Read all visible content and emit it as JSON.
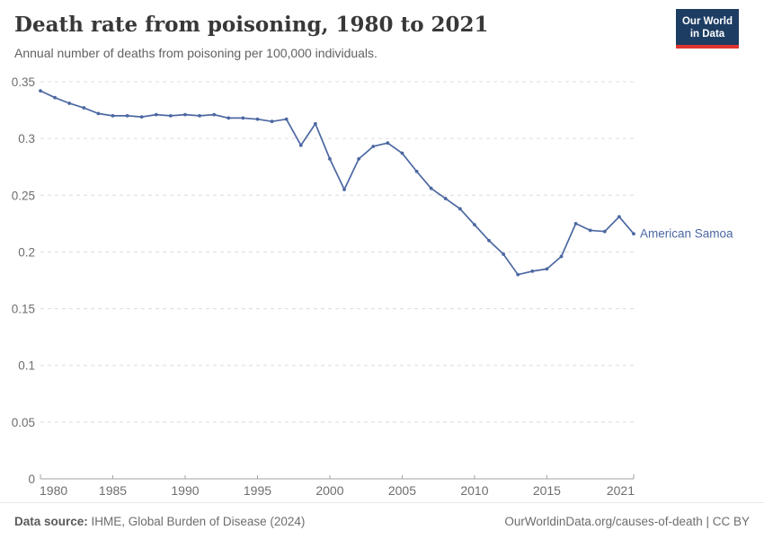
{
  "header": {
    "title": "Death rate from poisoning, 1980 to 2021",
    "subtitle": "Annual number of deaths from poisoning per 100,000 individuals.",
    "logo": {
      "line1": "Our World",
      "line2": "in Data"
    }
  },
  "chart_data": {
    "type": "line",
    "title": "Death rate from poisoning, 1980 to 2021",
    "x": [
      1980,
      1981,
      1982,
      1983,
      1984,
      1985,
      1986,
      1987,
      1988,
      1989,
      1990,
      1991,
      1992,
      1993,
      1994,
      1995,
      1996,
      1997,
      1998,
      1999,
      2000,
      2001,
      2002,
      2003,
      2004,
      2005,
      2006,
      2007,
      2008,
      2009,
      2010,
      2011,
      2012,
      2013,
      2014,
      2015,
      2016,
      2017,
      2018,
      2019,
      2020,
      2021
    ],
    "series": [
      {
        "name": "American Samoa",
        "values": [
          0.342,
          0.336,
          0.331,
          0.327,
          0.322,
          0.32,
          0.32,
          0.319,
          0.321,
          0.32,
          0.321,
          0.32,
          0.321,
          0.318,
          0.318,
          0.317,
          0.315,
          0.317,
          0.294,
          0.313,
          0.282,
          0.255,
          0.282,
          0.293,
          0.296,
          0.287,
          0.271,
          0.256,
          0.247,
          0.238,
          0.224,
          0.21,
          0.198,
          0.18,
          0.183,
          0.185,
          0.196,
          0.225,
          0.219,
          0.218,
          0.231,
          0.216
        ]
      }
    ],
    "end_label": "American Samoa",
    "xlabel": "",
    "ylabel": "",
    "xlim": [
      1980,
      2021
    ],
    "ylim": [
      0,
      0.35
    ],
    "xticks": [
      1980,
      1985,
      1990,
      1995,
      2000,
      2005,
      2010,
      2015,
      2021
    ],
    "xtick_labels": [
      "1980",
      "1985",
      "1990",
      "1995",
      "2000",
      "2005",
      "2010",
      "2015",
      "2021"
    ],
    "yticks": [
      0,
      0.05,
      0.1,
      0.15,
      0.2,
      0.25,
      0.3,
      0.35
    ],
    "ytick_labels": [
      "0",
      "0.05",
      "0.1",
      "0.15",
      "0.2",
      "0.25",
      "0.3",
      "0.35"
    ],
    "grid": "horizontal-dashed",
    "markers": "dots",
    "legend_position": "end-of-line"
  },
  "footer": {
    "source_label": "Data source:",
    "source_text": " IHME, Global Burden of Disease (2024)",
    "link_text": "OurWorldinData.org/causes-of-death | CC BY"
  },
  "colors": {
    "series": "#4c68a2",
    "grid": "#dcdcdc",
    "axis": "#a1a1a1",
    "tick_text": "#6e6e6e",
    "logo_bg": "#1d3d63",
    "logo_bar": "#e0342f"
  }
}
